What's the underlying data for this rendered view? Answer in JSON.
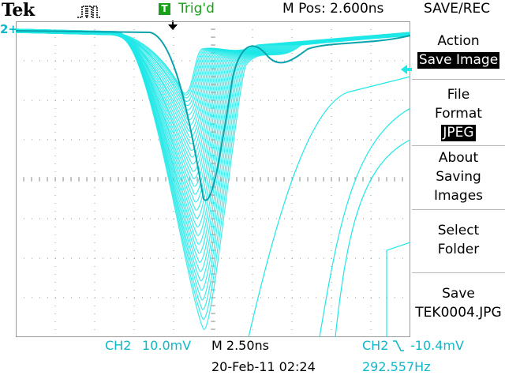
{
  "header": {
    "brand": "Tek",
    "trigger_badge": "T",
    "trigger_status": "Trig'd",
    "m_pos": "M Pos: 2.600ns",
    "menu_title": "SAVE/REC"
  },
  "channel_marker": "2+",
  "menu": {
    "action": {
      "label": "Action",
      "value": "Save Image"
    },
    "file_format": {
      "label_line1": "File",
      "label_line2": "Format",
      "value": "JPEG"
    },
    "about": {
      "line1": "About",
      "line2": "Saving",
      "line3": "Images"
    },
    "select_folder": {
      "line1": "Select",
      "line2": "Folder"
    },
    "save": {
      "line1": "Save",
      "line2": "TEK0004.JPG"
    }
  },
  "status": {
    "ch_scale_label": "CH2",
    "ch_scale_value": "10.0mV",
    "timebase": "M 2.50ns",
    "trigger_source": "CH2",
    "trigger_slope_icon": "falling-edge-icon",
    "trigger_level": "-10.4mV",
    "datetime": "20-Feb-11 02:24",
    "frequency": "292.557Hz"
  },
  "colors": {
    "trace": "#1ee8e8",
    "trace_dark": "#0aa3ad",
    "trigger_green": "#1aa01a",
    "grid": "#9a9a9a"
  }
}
